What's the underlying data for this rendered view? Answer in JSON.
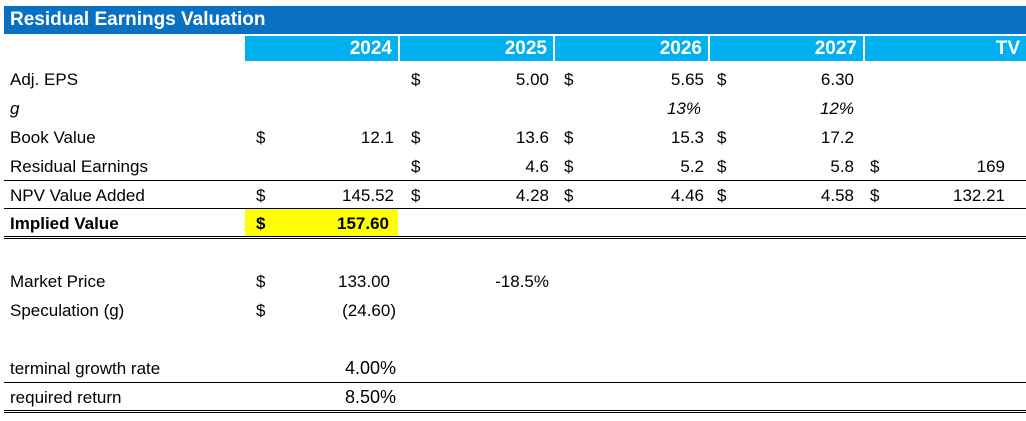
{
  "title": "Residual Earnings Valuation",
  "columns": [
    "2024",
    "2025",
    "2026",
    "2027",
    "TV"
  ],
  "rows": {
    "adj_eps": {
      "label": "Adj. EPS",
      "cur": [
        "",
        "$",
        "$",
        "$",
        ""
      ],
      "vals": [
        "",
        "5.00",
        "5.65",
        "6.30",
        ""
      ]
    },
    "g": {
      "label": "g",
      "vals": [
        "",
        "",
        "13%",
        "12%",
        ""
      ]
    },
    "book_value": {
      "label": "Book Value",
      "cur": [
        "$",
        "$",
        "$",
        "$",
        ""
      ],
      "vals": [
        "12.1",
        "13.6",
        "15.3",
        "17.2",
        ""
      ]
    },
    "residual_earnings": {
      "label": "Residual Earnings",
      "cur": [
        "",
        "$",
        "$",
        "$",
        "$"
      ],
      "vals": [
        "",
        "4.6",
        "5.2",
        "5.8",
        "169"
      ]
    },
    "npv_value_added": {
      "label": "NPV Value Added",
      "cur": [
        "$",
        "$",
        "$",
        "$",
        "$"
      ],
      "vals": [
        "145.52",
        "4.28",
        "4.46",
        "4.58",
        "132.21"
      ]
    },
    "implied_value": {
      "label": "Implied Value",
      "cur": "$",
      "val": "157.60"
    }
  },
  "market_price": {
    "label": "Market Price",
    "cur": "$",
    "val": "133.00",
    "pct": "-18.5%"
  },
  "speculation": {
    "label": "Speculation (g)",
    "cur": "$",
    "val": "(24.60)"
  },
  "terminal_growth": {
    "label": "terminal growth rate",
    "val": "4.00%"
  },
  "required_return": {
    "label": "required return",
    "val": "8.50%"
  },
  "colors": {
    "title_bg": "#0a70c2",
    "header_bg": "#00b0f0",
    "highlight": "#ffff00"
  }
}
